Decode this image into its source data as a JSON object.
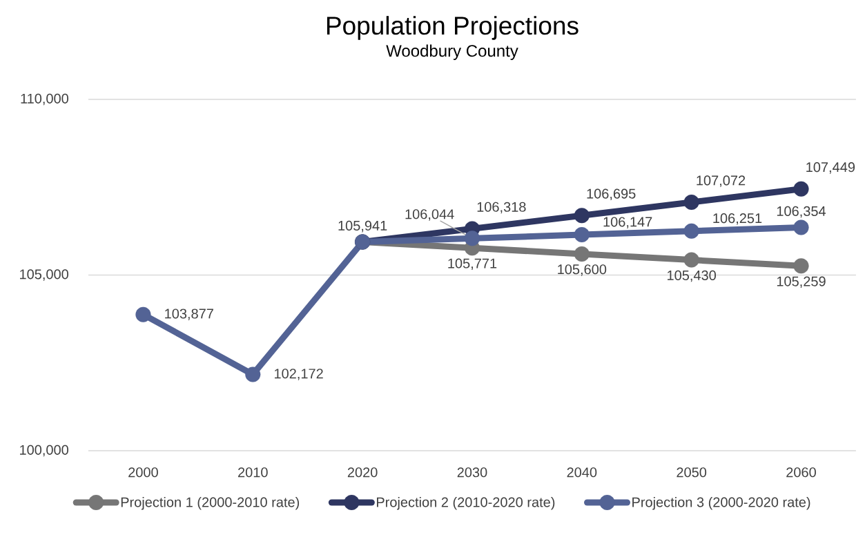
{
  "chart_data": {
    "type": "line",
    "title": "Population Projections",
    "subtitle": "Woodbury County",
    "categories": [
      "2000",
      "2010",
      "2020",
      "2030",
      "2040",
      "2050",
      "2060"
    ],
    "series": [
      {
        "name": "Projection 1 (2000-2010 rate)",
        "color": "#767676",
        "values": [
          null,
          null,
          105941,
          105771,
          105600,
          105430,
          105259
        ],
        "value_labels": [
          null,
          null,
          null,
          "105,771",
          "105,600",
          "105,430",
          "105,259"
        ]
      },
      {
        "name": "Projection 2 (2010-2020 rate)",
        "color": "#2e3661",
        "values": [
          null,
          null,
          105941,
          106318,
          106695,
          107072,
          107449
        ],
        "value_labels": [
          null,
          null,
          null,
          "106,318",
          "106,695",
          "107,072",
          "107,449"
        ]
      },
      {
        "name": "Projection 3 (2000-2020 rate)",
        "color": "#536395",
        "values": [
          103877,
          102172,
          105941,
          106044,
          106147,
          106251,
          106354
        ],
        "value_labels": [
          "103,877",
          "102,172",
          "105,941",
          "106,044",
          "106,147",
          "106,251",
          "106,354"
        ]
      }
    ],
    "ylim": [
      100000,
      110000
    ],
    "yticks": [
      {
        "value": 100000,
        "label": "100,000"
      },
      {
        "value": 105000,
        "label": "105,000"
      },
      {
        "value": 110000,
        "label": "110,000"
      }
    ],
    "grid": "y",
    "legend": "bottom",
    "marker": "circle",
    "line_style": "solid"
  }
}
